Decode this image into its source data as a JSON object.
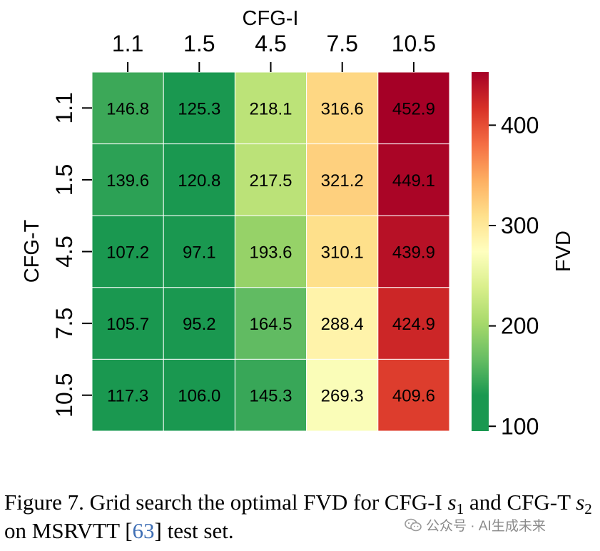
{
  "chart_data": {
    "type": "heatmap",
    "title": "",
    "xlabel": "CFG-I",
    "ylabel": "CFG-T",
    "x_categories": [
      "1.1",
      "1.5",
      "4.5",
      "7.5",
      "10.5"
    ],
    "y_categories": [
      "1.1",
      "1.5",
      "4.5",
      "7.5",
      "10.5"
    ],
    "values": [
      [
        146.8,
        125.3,
        218.1,
        316.6,
        452.9
      ],
      [
        139.6,
        120.8,
        217.5,
        321.2,
        449.1
      ],
      [
        107.2,
        97.1,
        193.6,
        310.1,
        439.9
      ],
      [
        105.7,
        95.2,
        164.5,
        288.4,
        424.9
      ],
      [
        117.3,
        106.0,
        145.3,
        269.3,
        409.6
      ]
    ],
    "colorbar": {
      "label": "FVD",
      "range": [
        95.2,
        452.9
      ],
      "ticks": [
        100,
        200,
        300,
        400
      ],
      "colormap": "RdYlGn_r"
    }
  },
  "caption": {
    "prefix": "Figure 7. Grid search the optimal FVD for CFG-I ",
    "s1_symbol": "s",
    "s1_index": "1",
    "middle": " and CFG-T ",
    "s2_symbol": "s",
    "s2_index": "2",
    "before_ref": " on MSRVTT [",
    "ref": "63",
    "after_ref": "] test set."
  },
  "watermark": {
    "text": "公众号 · AI生成未来",
    "icon": "wechat-icon"
  }
}
